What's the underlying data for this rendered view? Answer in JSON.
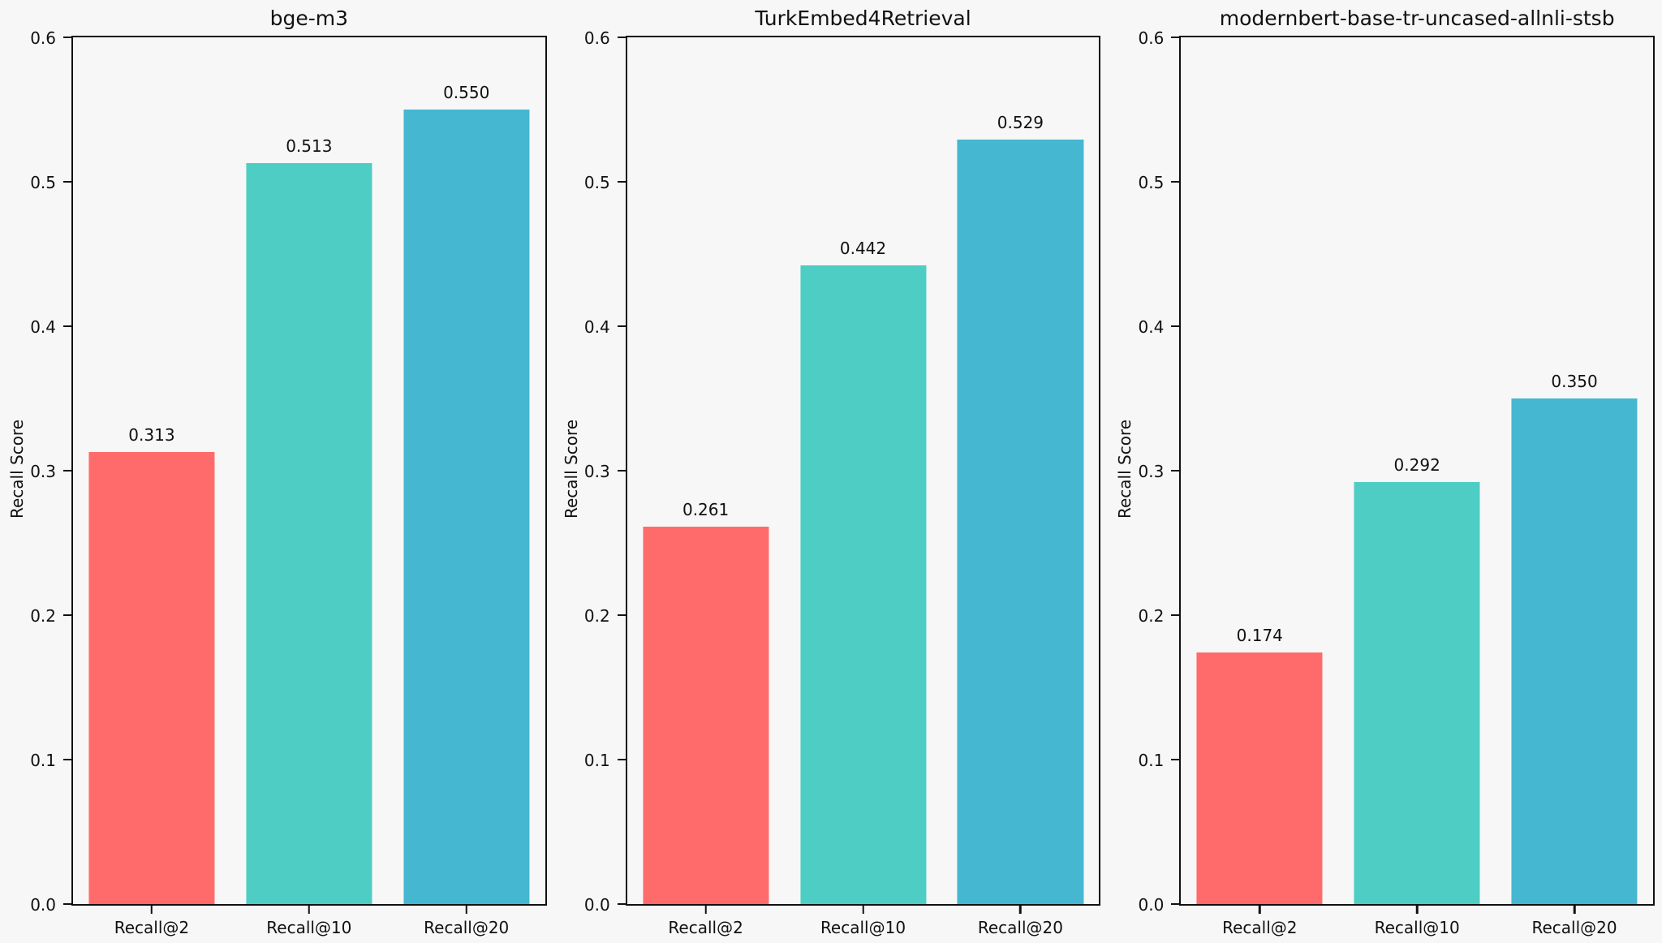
{
  "figure": {
    "background": "#f7f7f7",
    "bar_colors": [
      "#FF6B6B",
      "#4ECDC4",
      "#45B7D1"
    ],
    "spine_color": "#111111"
  },
  "chart_data": [
    {
      "type": "bar",
      "title": "bge-m3",
      "categories": [
        "Recall@2",
        "Recall@10",
        "Recall@20"
      ],
      "values": [
        0.313,
        0.513,
        0.55
      ],
      "bar_labels": [
        "0.313",
        "0.513",
        "0.550"
      ],
      "xlabel": "",
      "ylabel": "Recall Score",
      "ylim": [
        0,
        0.6
      ],
      "yticks": [
        0.0,
        0.1,
        0.2,
        0.3,
        0.4,
        0.5,
        0.6
      ],
      "ytick_labels": [
        "0.0",
        "0.1",
        "0.2",
        "0.3",
        "0.4",
        "0.5",
        "0.6"
      ],
      "grid": false,
      "legend": null
    },
    {
      "type": "bar",
      "title": "TurkEmbed4Retrieval",
      "categories": [
        "Recall@2",
        "Recall@10",
        "Recall@20"
      ],
      "values": [
        0.261,
        0.442,
        0.529
      ],
      "bar_labels": [
        "0.261",
        "0.442",
        "0.529"
      ],
      "xlabel": "",
      "ylabel": "Recall Score",
      "ylim": [
        0,
        0.6
      ],
      "yticks": [
        0.0,
        0.1,
        0.2,
        0.3,
        0.4,
        0.5,
        0.6
      ],
      "ytick_labels": [
        "0.0",
        "0.1",
        "0.2",
        "0.3",
        "0.4",
        "0.5",
        "0.6"
      ],
      "grid": false,
      "legend": null
    },
    {
      "type": "bar",
      "title": "modernbert-base-tr-uncased-allnli-stsb",
      "categories": [
        "Recall@2",
        "Recall@10",
        "Recall@20"
      ],
      "values": [
        0.174,
        0.292,
        0.35
      ],
      "bar_labels": [
        "0.174",
        "0.292",
        "0.350"
      ],
      "xlabel": "",
      "ylabel": "Recall Score",
      "ylim": [
        0,
        0.6
      ],
      "yticks": [
        0.0,
        0.1,
        0.2,
        0.3,
        0.4,
        0.5,
        0.6
      ],
      "ytick_labels": [
        "0.0",
        "0.1",
        "0.2",
        "0.3",
        "0.4",
        "0.5",
        "0.6"
      ],
      "grid": false,
      "legend": null
    }
  ]
}
